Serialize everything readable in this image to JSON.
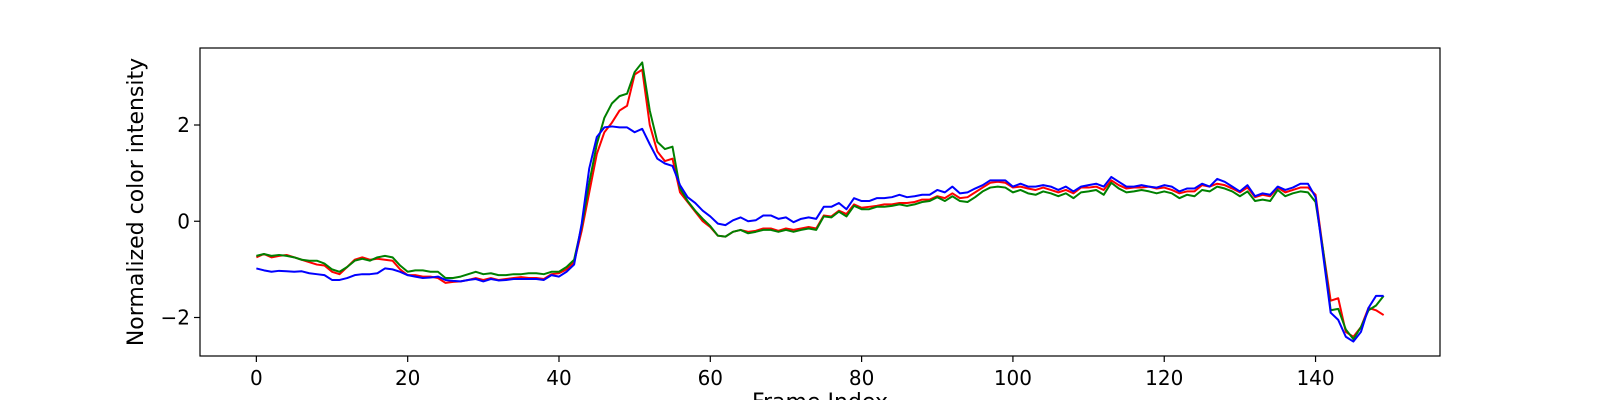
{
  "chart_data": {
    "type": "line",
    "title": "",
    "xlabel": "Frame Index",
    "ylabel": "Normalized color intensity",
    "xlim": [
      -7.45,
      156.45
    ],
    "ylim": [
      -2.8,
      3.6
    ],
    "x_ticks": [
      0,
      20,
      40,
      60,
      80,
      100,
      120,
      140
    ],
    "y_ticks": [
      -2,
      0,
      2
    ],
    "grid": false,
    "legend": "none",
    "x": [
      0,
      1,
      2,
      3,
      4,
      5,
      6,
      7,
      8,
      9,
      10,
      11,
      12,
      13,
      14,
      15,
      16,
      17,
      18,
      19,
      20,
      21,
      22,
      23,
      24,
      25,
      26,
      27,
      28,
      29,
      30,
      31,
      32,
      33,
      34,
      35,
      36,
      37,
      38,
      39,
      40,
      41,
      42,
      43,
      44,
      45,
      46,
      47,
      48,
      49,
      50,
      51,
      52,
      53,
      54,
      55,
      56,
      57,
      58,
      59,
      60,
      61,
      62,
      63,
      64,
      65,
      66,
      67,
      68,
      69,
      70,
      71,
      72,
      73,
      74,
      75,
      76,
      77,
      78,
      79,
      80,
      81,
      82,
      83,
      84,
      85,
      86,
      87,
      88,
      89,
      90,
      91,
      92,
      93,
      94,
      95,
      96,
      97,
      98,
      99,
      100,
      101,
      102,
      103,
      104,
      105,
      106,
      107,
      108,
      109,
      110,
      111,
      112,
      113,
      114,
      115,
      116,
      117,
      118,
      119,
      120,
      121,
      122,
      123,
      124,
      125,
      126,
      127,
      128,
      129,
      130,
      131,
      132,
      133,
      134,
      135,
      136,
      137,
      138,
      139,
      140,
      141,
      142,
      143,
      144,
      145,
      146,
      147,
      148,
      149
    ],
    "series": [
      {
        "color": "#ff0000",
        "values": [
          -0.75,
          -0.68,
          -0.75,
          -0.72,
          -0.7,
          -0.75,
          -0.8,
          -0.85,
          -0.9,
          -0.92,
          -1.05,
          -1.1,
          -0.95,
          -0.8,
          -0.75,
          -0.8,
          -0.78,
          -0.8,
          -0.82,
          -1.0,
          -1.12,
          -1.12,
          -1.15,
          -1.15,
          -1.18,
          -1.28,
          -1.26,
          -1.25,
          -1.22,
          -1.18,
          -1.22,
          -1.18,
          -1.22,
          -1.2,
          -1.18,
          -1.16,
          -1.18,
          -1.18,
          -1.2,
          -1.1,
          -1.08,
          -1.0,
          -0.85,
          -0.2,
          0.6,
          1.4,
          1.85,
          2.05,
          2.3,
          2.4,
          3.05,
          3.15,
          2.0,
          1.45,
          1.25,
          1.3,
          0.6,
          0.4,
          0.2,
          0.0,
          -0.12,
          -0.3,
          -0.32,
          -0.22,
          -0.18,
          -0.22,
          -0.2,
          -0.15,
          -0.15,
          -0.2,
          -0.15,
          -0.18,
          -0.15,
          -0.12,
          -0.15,
          0.12,
          0.1,
          0.22,
          0.15,
          0.35,
          0.28,
          0.3,
          0.32,
          0.35,
          0.35,
          0.38,
          0.38,
          0.4,
          0.45,
          0.45,
          0.52,
          0.48,
          0.58,
          0.48,
          0.5,
          0.6,
          0.7,
          0.8,
          0.82,
          0.8,
          0.7,
          0.72,
          0.68,
          0.65,
          0.7,
          0.65,
          0.6,
          0.65,
          0.58,
          0.7,
          0.7,
          0.72,
          0.65,
          0.85,
          0.75,
          0.68,
          0.7,
          0.7,
          0.72,
          0.68,
          0.7,
          0.65,
          0.58,
          0.62,
          0.62,
          0.75,
          0.72,
          0.78,
          0.75,
          0.68,
          0.6,
          0.7,
          0.5,
          0.55,
          0.52,
          0.7,
          0.6,
          0.65,
          0.7,
          0.7,
          0.55,
          -0.6,
          -1.65,
          -1.6,
          -2.3,
          -2.4,
          -2.2,
          -1.8,
          -1.85,
          -1.95
        ]
      },
      {
        "color": "#008000",
        "values": [
          -0.72,
          -0.68,
          -0.72,
          -0.7,
          -0.72,
          -0.75,
          -0.8,
          -0.82,
          -0.82,
          -0.88,
          -1.0,
          -1.05,
          -0.95,
          -0.82,
          -0.78,
          -0.82,
          -0.75,
          -0.72,
          -0.75,
          -0.92,
          -1.05,
          -1.02,
          -1.02,
          -1.05,
          -1.05,
          -1.18,
          -1.18,
          -1.15,
          -1.1,
          -1.05,
          -1.1,
          -1.08,
          -1.12,
          -1.12,
          -1.1,
          -1.1,
          -1.08,
          -1.08,
          -1.1,
          -1.05,
          -1.05,
          -0.95,
          -0.8,
          -0.1,
          0.8,
          1.6,
          2.15,
          2.45,
          2.6,
          2.65,
          3.1,
          3.3,
          2.3,
          1.65,
          1.5,
          1.55,
          0.68,
          0.42,
          0.22,
          0.05,
          -0.1,
          -0.3,
          -0.32,
          -0.22,
          -0.18,
          -0.25,
          -0.22,
          -0.18,
          -0.18,
          -0.22,
          -0.18,
          -0.22,
          -0.18,
          -0.15,
          -0.18,
          0.1,
          0.08,
          0.2,
          0.1,
          0.32,
          0.25,
          0.25,
          0.3,
          0.3,
          0.32,
          0.35,
          0.32,
          0.35,
          0.4,
          0.42,
          0.5,
          0.42,
          0.52,
          0.42,
          0.4,
          0.5,
          0.62,
          0.7,
          0.72,
          0.7,
          0.6,
          0.65,
          0.58,
          0.55,
          0.62,
          0.58,
          0.52,
          0.58,
          0.48,
          0.6,
          0.62,
          0.65,
          0.55,
          0.8,
          0.68,
          0.6,
          0.62,
          0.65,
          0.62,
          0.58,
          0.62,
          0.58,
          0.48,
          0.55,
          0.52,
          0.65,
          0.62,
          0.72,
          0.68,
          0.62,
          0.52,
          0.62,
          0.42,
          0.45,
          0.42,
          0.65,
          0.52,
          0.58,
          0.62,
          0.6,
          0.4,
          -0.6,
          -1.85,
          -1.82,
          -2.25,
          -2.45,
          -2.2,
          -1.85,
          -1.75,
          -1.55
        ]
      },
      {
        "color": "#0000ff",
        "values": [
          -0.98,
          -1.02,
          -1.05,
          -1.03,
          -1.04,
          -1.05,
          -1.04,
          -1.08,
          -1.1,
          -1.12,
          -1.22,
          -1.22,
          -1.18,
          -1.12,
          -1.1,
          -1.1,
          -1.08,
          -0.98,
          -1.0,
          -1.05,
          -1.12,
          -1.15,
          -1.18,
          -1.17,
          -1.15,
          -1.22,
          -1.24,
          -1.25,
          -1.22,
          -1.2,
          -1.25,
          -1.2,
          -1.23,
          -1.22,
          -1.2,
          -1.2,
          -1.2,
          -1.2,
          -1.22,
          -1.12,
          -1.15,
          -1.05,
          -0.9,
          -0.05,
          1.1,
          1.75,
          1.95,
          1.97,
          1.95,
          1.95,
          1.85,
          1.92,
          1.6,
          1.3,
          1.2,
          1.15,
          0.75,
          0.5,
          0.38,
          0.22,
          0.1,
          -0.05,
          -0.08,
          0.02,
          0.08,
          0.0,
          0.02,
          0.12,
          0.12,
          0.05,
          0.08,
          -0.02,
          0.05,
          0.08,
          0.05,
          0.3,
          0.3,
          0.38,
          0.25,
          0.48,
          0.42,
          0.42,
          0.48,
          0.48,
          0.5,
          0.55,
          0.5,
          0.52,
          0.55,
          0.55,
          0.65,
          0.6,
          0.72,
          0.58,
          0.6,
          0.68,
          0.75,
          0.85,
          0.85,
          0.85,
          0.72,
          0.78,
          0.72,
          0.72,
          0.75,
          0.72,
          0.65,
          0.72,
          0.62,
          0.72,
          0.75,
          0.78,
          0.72,
          0.92,
          0.82,
          0.72,
          0.72,
          0.75,
          0.72,
          0.7,
          0.75,
          0.72,
          0.62,
          0.68,
          0.68,
          0.78,
          0.72,
          0.88,
          0.82,
          0.72,
          0.62,
          0.75,
          0.52,
          0.58,
          0.55,
          0.72,
          0.65,
          0.7,
          0.78,
          0.78,
          0.5,
          -0.7,
          -1.9,
          -2.05,
          -2.4,
          -2.5,
          -2.3,
          -1.8,
          -1.55,
          -1.55
        ]
      }
    ]
  }
}
